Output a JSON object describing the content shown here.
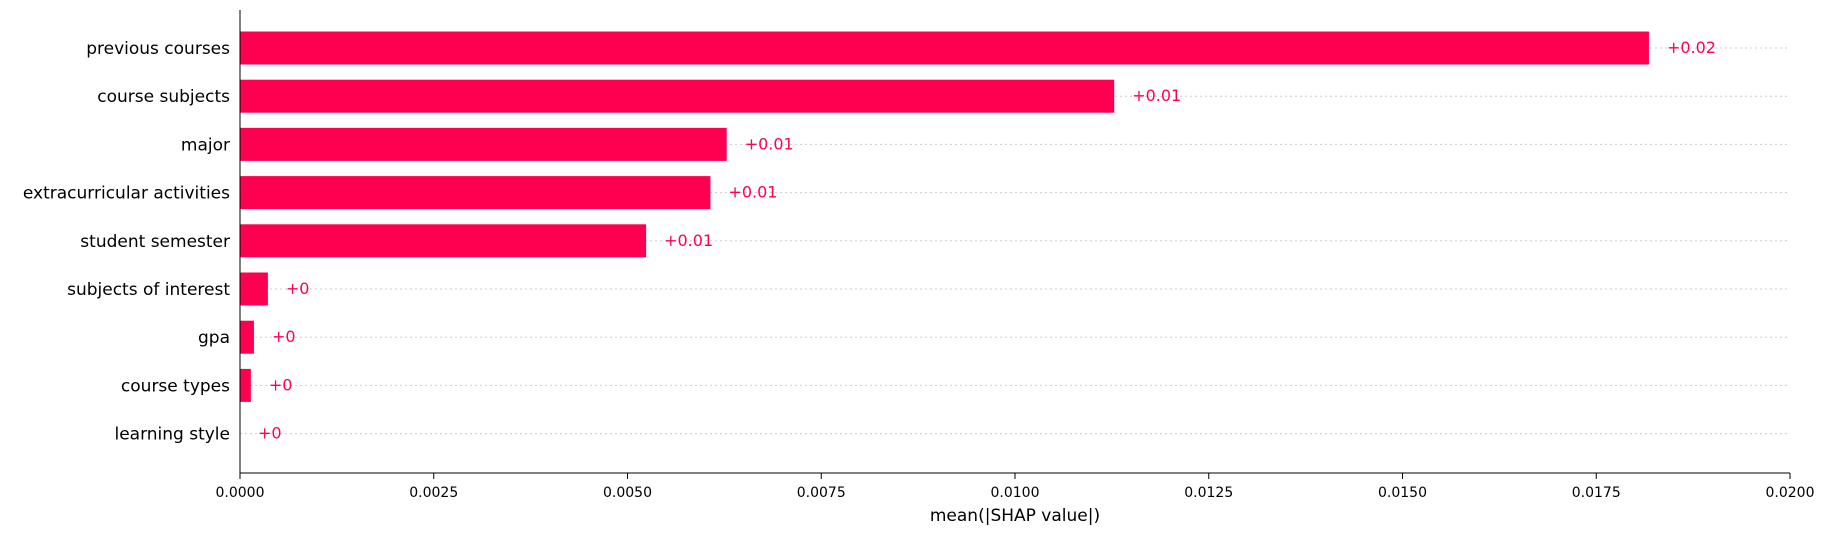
{
  "chart_data": {
    "type": "bar",
    "orientation": "horizontal",
    "categories": [
      "previous courses",
      "course subjects",
      "major",
      "extracurricular activities",
      "student semester",
      "subjects of interest",
      "gpa",
      "course types",
      "learning style"
    ],
    "values": [
      0.01818,
      0.01128,
      0.00628,
      0.00607,
      0.00524,
      0.00036,
      0.00018,
      0.00014,
      0.0
    ],
    "value_labels": [
      "+0.02",
      "+0.01",
      "+0.01",
      "+0.01",
      "+0.01",
      "+0",
      "+0",
      "+0",
      "+0"
    ],
    "xlabel": "mean(|SHAP value|)",
    "ylabel": "",
    "title": "",
    "xlim": [
      0,
      0.02
    ],
    "xticks": [
      0.0,
      0.0025,
      0.005,
      0.0075,
      0.01,
      0.0125,
      0.015,
      0.0175,
      0.02
    ],
    "xtick_labels": [
      "0.0000",
      "0.0025",
      "0.0050",
      "0.0075",
      "0.0100",
      "0.0125",
      "0.0150",
      "0.0175",
      "0.0200"
    ],
    "grid": "horizontal dotted row guides",
    "legend": "none",
    "bar_color": "#ff0051",
    "label_color": "#ff0051",
    "grid_color": "#cccccc",
    "axis_color": "#000000"
  }
}
